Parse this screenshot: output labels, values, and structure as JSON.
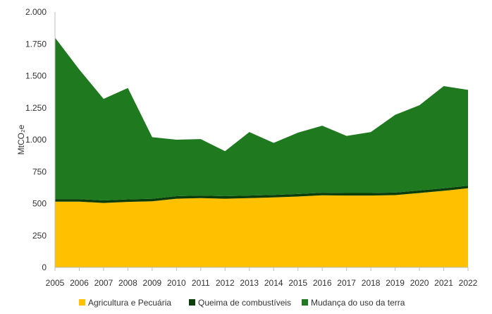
{
  "chart_data": {
    "type": "area",
    "stacked": true,
    "title": "",
    "xlabel": "",
    "ylabel": "MtCO₂e",
    "x": [
      "2005",
      "2006",
      "2007",
      "2008",
      "2009",
      "2010",
      "2011",
      "2012",
      "2013",
      "2014",
      "2015",
      "2016",
      "2017",
      "2018",
      "2019",
      "2020",
      "2021",
      "2022"
    ],
    "ylim": [
      0,
      2000
    ],
    "yticks": [
      0,
      250,
      500,
      750,
      1000,
      1250,
      1500,
      1750,
      2000
    ],
    "ytick_labels": [
      "0",
      "250",
      "500",
      "750",
      "1.000",
      "1.250",
      "1.500",
      "1.750",
      "2.000"
    ],
    "series": [
      {
        "name": "Agricultura e Pecuária",
        "color": "#ffc000",
        "values": [
          515,
          515,
          505,
          513,
          518,
          538,
          543,
          538,
          543,
          548,
          555,
          565,
          563,
          563,
          566,
          583,
          600,
          620
        ]
      },
      {
        "name": "Queima de combustíveis",
        "color": "#0b3d0b",
        "values": [
          20,
          20,
          20,
          20,
          20,
          20,
          20,
          20,
          20,
          20,
          20,
          20,
          20,
          20,
          20,
          20,
          20,
          20
        ]
      },
      {
        "name": "Mudança do uso da terra",
        "color": "#1f7a1f",
        "values": [
          1265,
          1015,
          795,
          872,
          482,
          442,
          442,
          352,
          497,
          407,
          480,
          525,
          447,
          477,
          609,
          667,
          800,
          750
        ]
      }
    ],
    "legend_position": "bottom",
    "grid": false
  }
}
